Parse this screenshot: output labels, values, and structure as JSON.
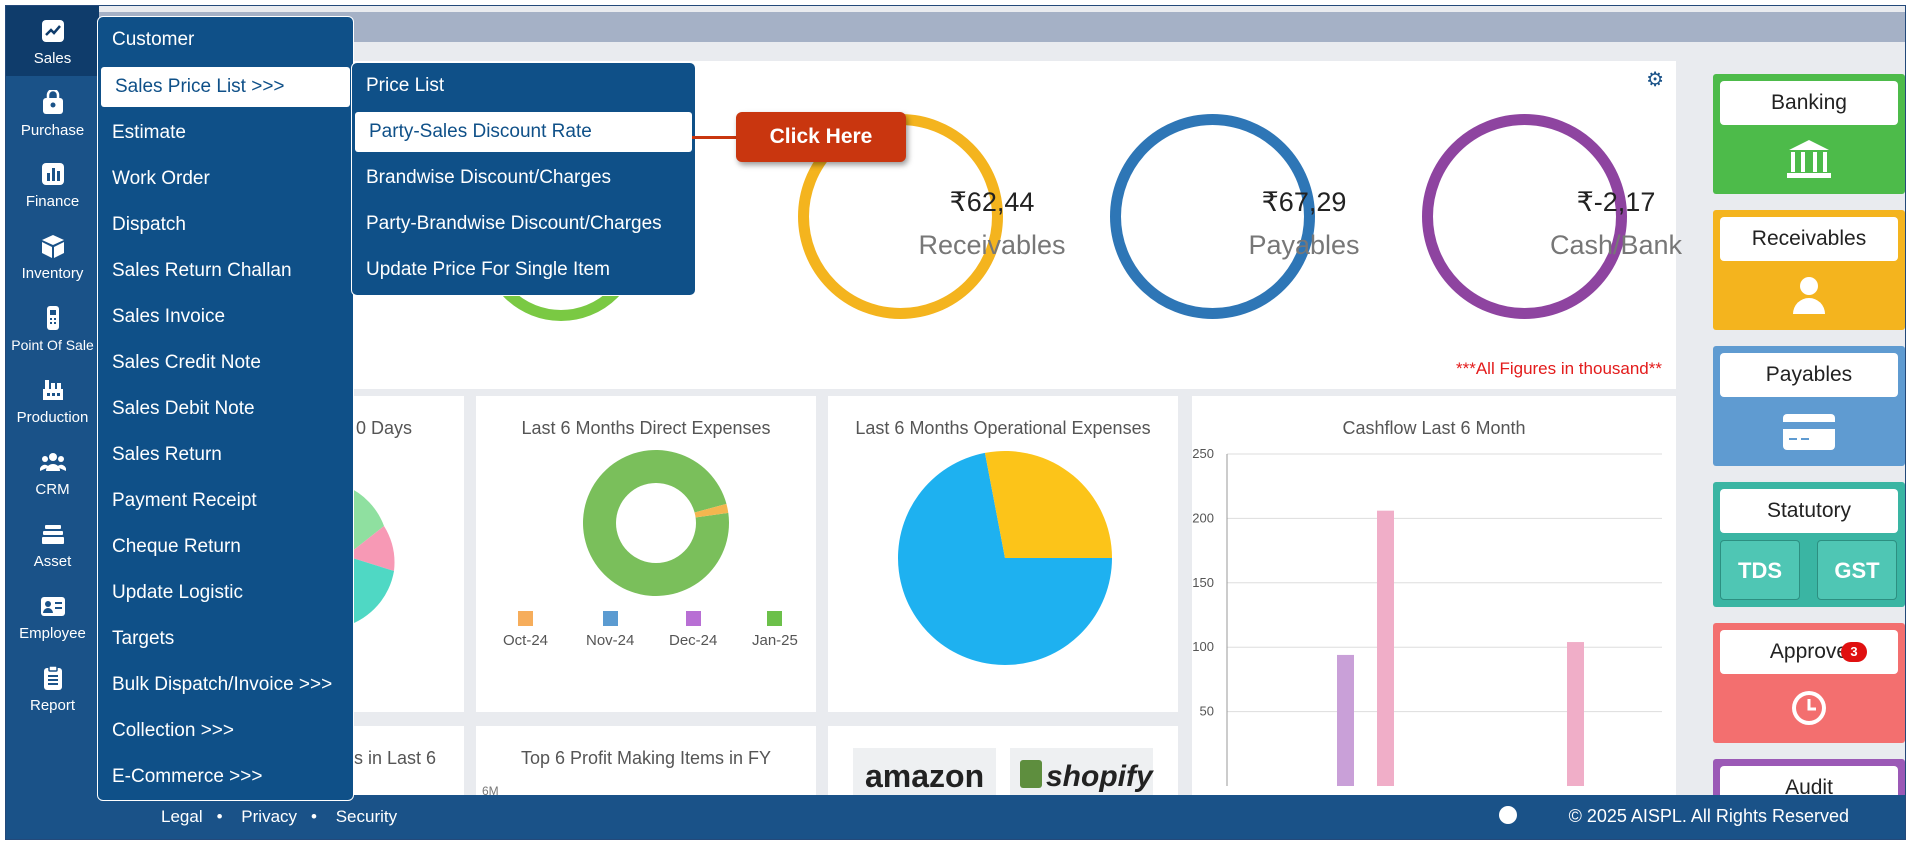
{
  "sidebar": {
    "items": [
      {
        "label": "Sales",
        "icon": "chart-icon"
      },
      {
        "label": "Purchase",
        "icon": "bag-icon"
      },
      {
        "label": "Finance",
        "icon": "bars-icon"
      },
      {
        "label": "Inventory",
        "icon": "box-icon"
      },
      {
        "label": "Point Of Sale",
        "icon": "pos-icon"
      },
      {
        "label": "Production",
        "icon": "factory-icon"
      },
      {
        "label": "CRM",
        "icon": "users-icon"
      },
      {
        "label": "Asset",
        "icon": "stack-icon"
      },
      {
        "label": "Employee",
        "icon": "id-card-icon"
      },
      {
        "label": "Report",
        "icon": "clipboard-icon"
      }
    ]
  },
  "sales_menu": {
    "items": [
      "Customer",
      "Sales Price List >>>",
      "Estimate",
      "Work Order",
      "Dispatch",
      "Sales Return Challan",
      "Sales Invoice",
      "Sales Credit Note",
      "Sales Debit Note",
      "Sales Return",
      "Payment Receipt",
      "Cheque Return",
      "Update Logistic",
      "Targets",
      "Bulk Dispatch/Invoice >>>",
      "Collection >>>",
      "E-Commerce >>>"
    ]
  },
  "price_submenu": {
    "items": [
      "Price List",
      "Party-Sales Discount Rate",
      "Brandwise Discount/Charges",
      "Party-Brandwise Discount/Charges",
      "Update Price For Single Item"
    ]
  },
  "callout": {
    "text": "Click Here"
  },
  "summary": {
    "rings": [
      {
        "amount": "₹62,44",
        "label": "Receivables",
        "color": "#f4b41e"
      },
      {
        "amount": "₹67,29",
        "label": "Payables",
        "color": "#2e76b6"
      },
      {
        "amount": "₹-2,17",
        "label": "Cash/Bank",
        "color": "#8e44a0"
      }
    ],
    "note": "***All Figures in thousand**"
  },
  "cards": {
    "days_title_partial": "0 Days",
    "direct_expenses_title": "Last 6 Months Direct Expenses",
    "operational_expenses_title": "Last 6 Months Operational Expenses",
    "cashflow_title": "Cashflow Last 6 Month",
    "last6_partial": "s in Last 6",
    "profit_items_title": "Top 6 Profit Making Items in FY",
    "profit_axis_partial": "6M",
    "legend": [
      {
        "label": "Oct-24",
        "color": "#f6ad5b"
      },
      {
        "label": "Nov-24",
        "color": "#5b9bd1"
      },
      {
        "label": "Dec-24",
        "color": "#b86fd4"
      },
      {
        "label": "Jan-25",
        "color": "#6cc04a"
      }
    ],
    "logos": [
      "amazon",
      "shopify"
    ]
  },
  "chart_data": [
    {
      "type": "bar",
      "title": "Cashflow Last 6 Month",
      "ylim": [
        0,
        250
      ],
      "yticks": [
        50,
        100,
        150,
        200,
        250
      ],
      "series": [
        {
          "values": [
            94,
            0
          ],
          "color": "#c9a0d8"
        },
        {
          "values": [
            206,
            104
          ],
          "color": "#f0aec8"
        }
      ]
    },
    {
      "type": "pie",
      "title": "Last 6 Months Operational Expenses",
      "slices": [
        {
          "value": 72,
          "color": "#1eb1f0"
        },
        {
          "value": 28,
          "color": "#fcc419"
        }
      ]
    },
    {
      "type": "pie",
      "title": "Last 6 Months Direct Expenses",
      "donut": true,
      "slices": [
        {
          "value": 98,
          "color": "#7abf5b"
        },
        {
          "value": 2,
          "color": "#f4b64f"
        }
      ]
    }
  ],
  "quick_panel": {
    "banking": "Banking",
    "receivables": "Receivables",
    "payables": "Payables",
    "statutory": "Statutory",
    "tds": "TDS",
    "gst": "GST",
    "approve": "Approve",
    "approve_badge": "3",
    "audit": "Audit"
  },
  "footer": {
    "legal": "Legal",
    "privacy": "Privacy",
    "security": "Security",
    "copyright": "© 2025 AISPL. All Rights Reserved"
  }
}
